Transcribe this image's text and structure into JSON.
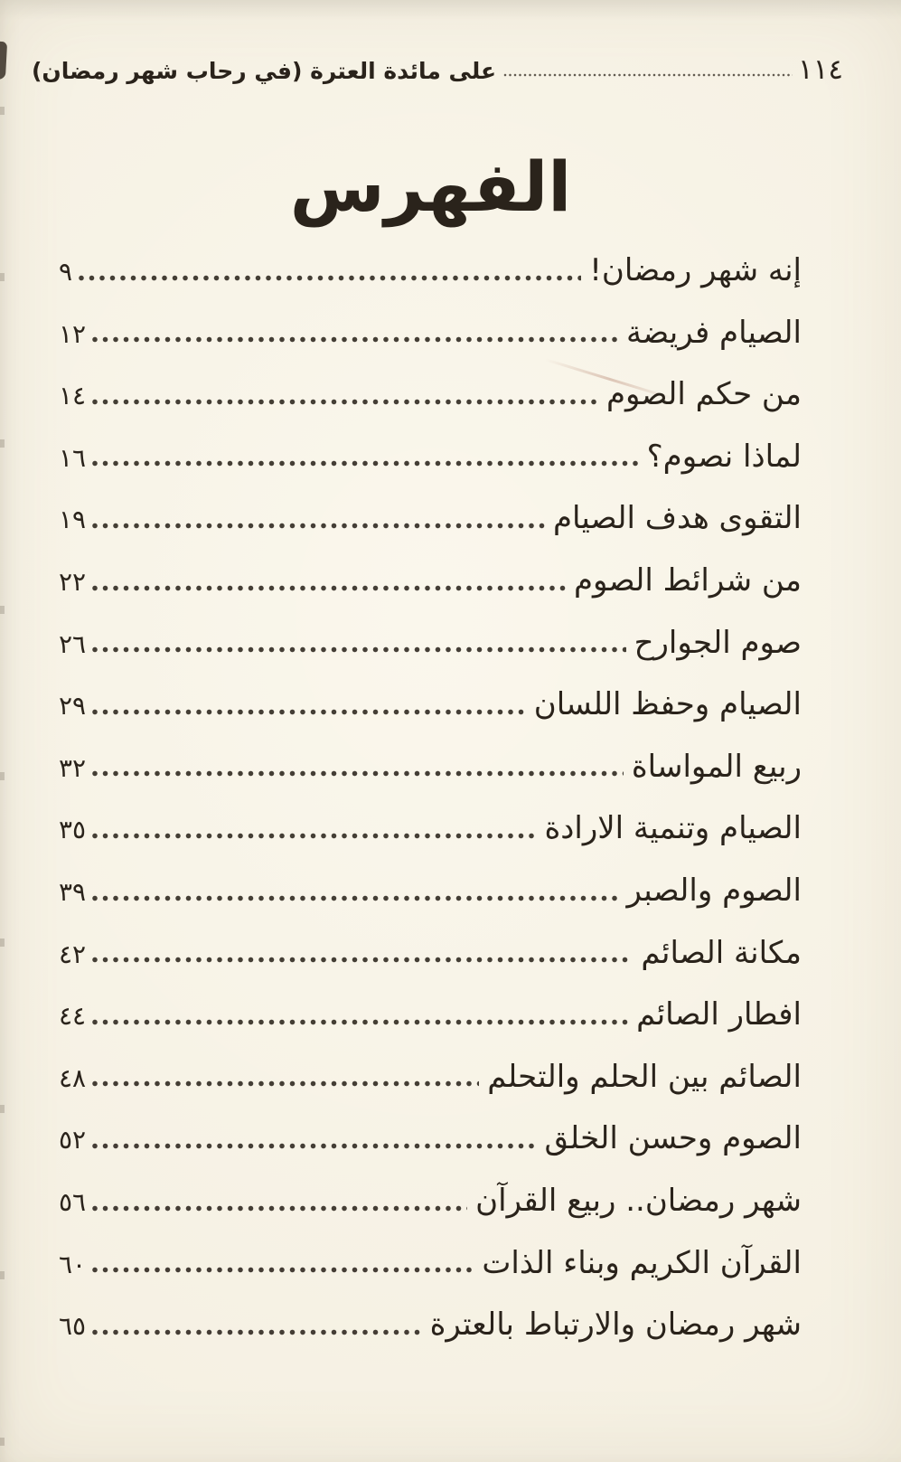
{
  "page": {
    "paper_color": "#f5f0e2",
    "ink_color": "#2a231b",
    "kind": "scanned book page"
  },
  "header": {
    "book_title": "على مائدة العترة (في رحاب شهر رمضان)",
    "page_number": "١١٤"
  },
  "heading": {
    "title": "الفهرس"
  },
  "toc": {
    "entries": [
      {
        "title": "إنه شهر رمضان!",
        "page": "٩"
      },
      {
        "title": "الصيام فريضة",
        "page": "١٢"
      },
      {
        "title": "من حكم الصوم",
        "page": "١٤"
      },
      {
        "title": "لماذا نصوم؟",
        "page": "١٦"
      },
      {
        "title": "التقوى هدف الصيام",
        "page": "١٩"
      },
      {
        "title": "من شرائط الصوم",
        "page": "٢٢"
      },
      {
        "title": "صوم الجوارح",
        "page": "٢٦"
      },
      {
        "title": "الصيام وحفظ اللسان",
        "page": "٢٩"
      },
      {
        "title": "ربيع المواساة",
        "page": "٣٢"
      },
      {
        "title": "الصيام وتنمية الارادة",
        "page": "٣٥"
      },
      {
        "title": "الصوم والصبر",
        "page": "٣٩"
      },
      {
        "title": "مكانة الصائم",
        "page": "٤٢"
      },
      {
        "title": "افطار الصائم",
        "page": "٤٤"
      },
      {
        "title": "الصائم بين الحلم والتحلم",
        "page": "٤٨"
      },
      {
        "title": "الصوم وحسن الخلق",
        "page": "٥٢"
      },
      {
        "title": "شهر رمضان.. ربيع القرآن",
        "page": "٥٦"
      },
      {
        "title": "القرآن الكريم وبناء الذات",
        "page": "٦٠"
      },
      {
        "title": "شهر رمضان والارتباط بالعترة",
        "page": "٦٥"
      }
    ]
  }
}
